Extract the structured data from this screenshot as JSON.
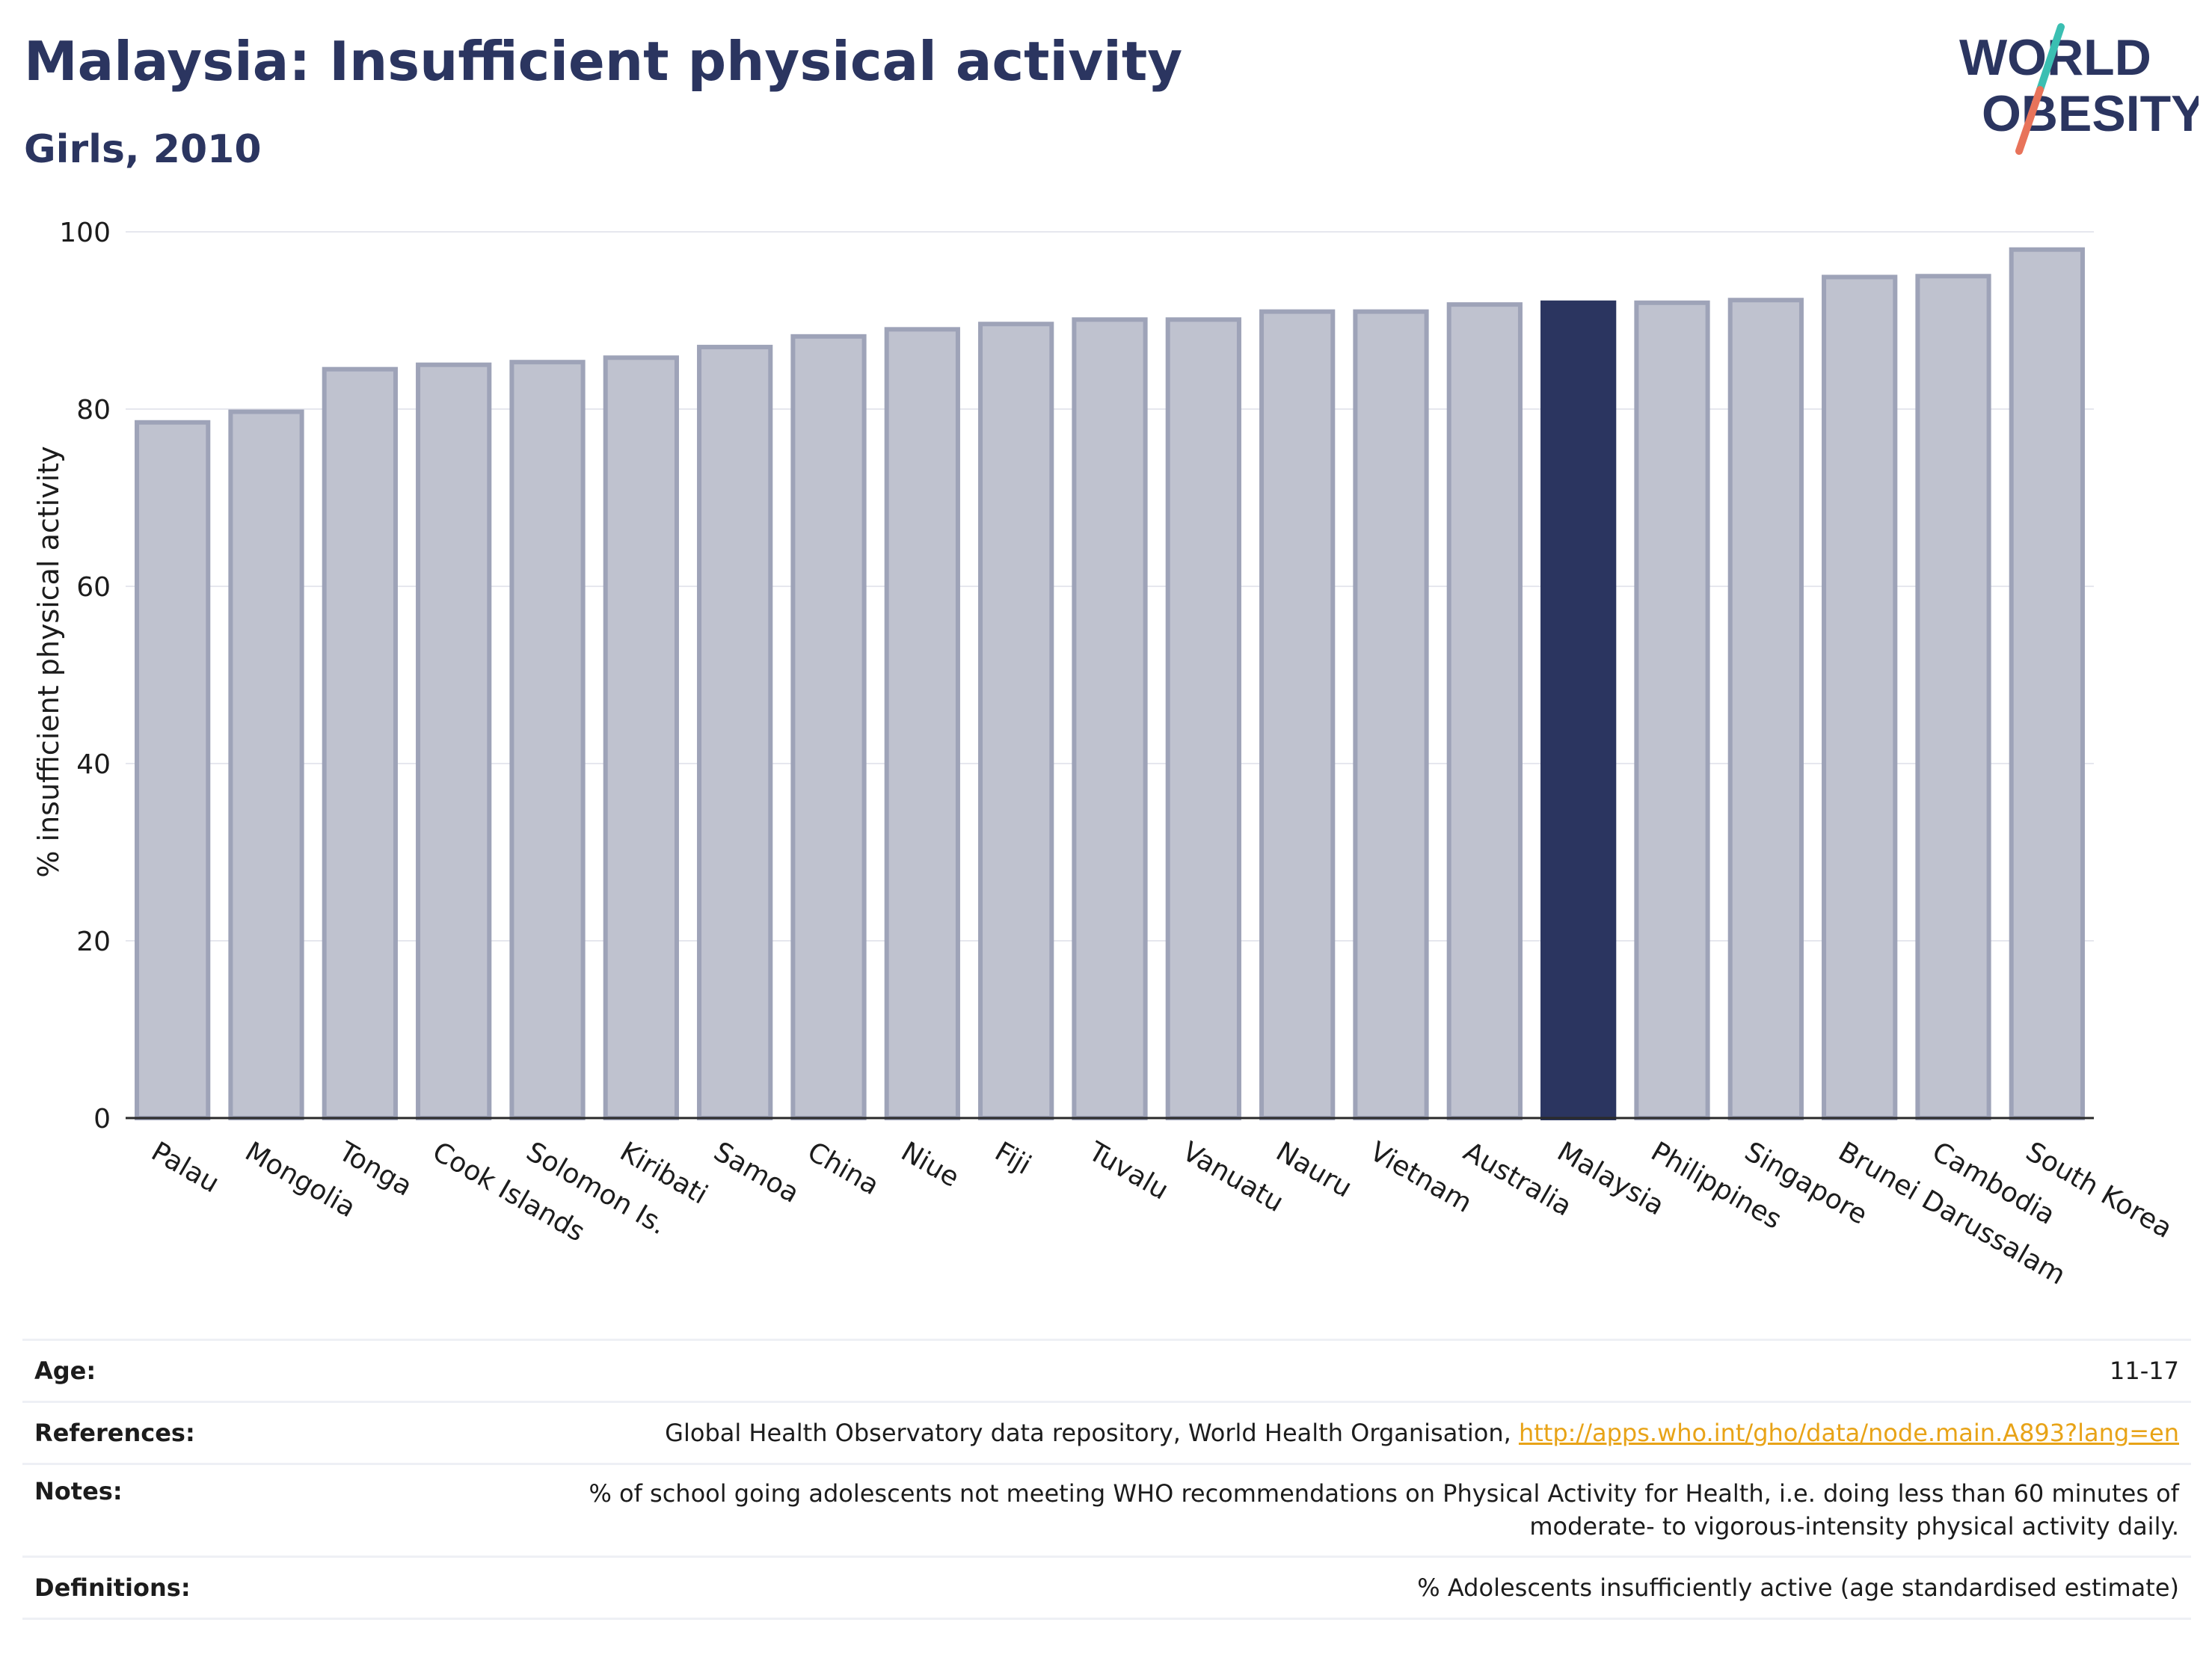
{
  "header": {
    "title": "Malaysia: Insufficient physical activity",
    "subtitle": "Girls, 2010"
  },
  "logo": {
    "text_line1": "WORLD",
    "text_line2": "OBESITY",
    "colors": {
      "text": "#2b3560",
      "slash_top": "#3bbfb2",
      "slash_bottom": "#e8735a"
    }
  },
  "chart_data": {
    "type": "bar",
    "ylabel": "% insufficient physical activity",
    "ylim": [
      0,
      100
    ],
    "yticks": [
      0,
      20,
      40,
      60,
      80,
      100
    ],
    "grid": true,
    "categories": [
      "Palau",
      "Mongolia",
      "Tonga",
      "Cook Islands",
      "Solomon Is.",
      "Kiribati",
      "Samoa",
      "China",
      "Niue",
      "Fiji",
      "Tuvalu",
      "Vanuatu",
      "Nauru",
      "Vietnam",
      "Australia",
      "Malaysia",
      "Philippines",
      "Singapore",
      "Brunei Darussalam",
      "Cambodia",
      "South Korea"
    ],
    "values": [
      78.5,
      79.7,
      84.5,
      85.0,
      85.3,
      85.8,
      87.0,
      88.2,
      89.0,
      89.6,
      90.1,
      90.1,
      91.0,
      91.0,
      91.8,
      92.0,
      92.0,
      92.3,
      94.9,
      95.0,
      98.0
    ],
    "highlight": "Malaysia",
    "colors": {
      "bar": "#bfc2cf",
      "bar_edge": "#9ea3b8",
      "highlight": "#2b3560"
    }
  },
  "meta": {
    "age_label": "Age:",
    "age_value": "11-17",
    "references_label": "References:",
    "references_text": "Global Health Observatory data repository, World Health Organisation,",
    "references_link": "http://apps.who.int/gho/data/node.main.A893?lang=en",
    "notes_label": "Notes:",
    "notes_line1": "% of school going adolescents not meeting WHO recommendations on Physical Activity for Health, i.e. doing less than 60 minutes of",
    "notes_line2": "moderate- to vigorous-intensity physical activity daily.",
    "definitions_label": "Definitions:",
    "definitions_value": "% Adolescents insufficiently active (age standardised estimate)"
  }
}
